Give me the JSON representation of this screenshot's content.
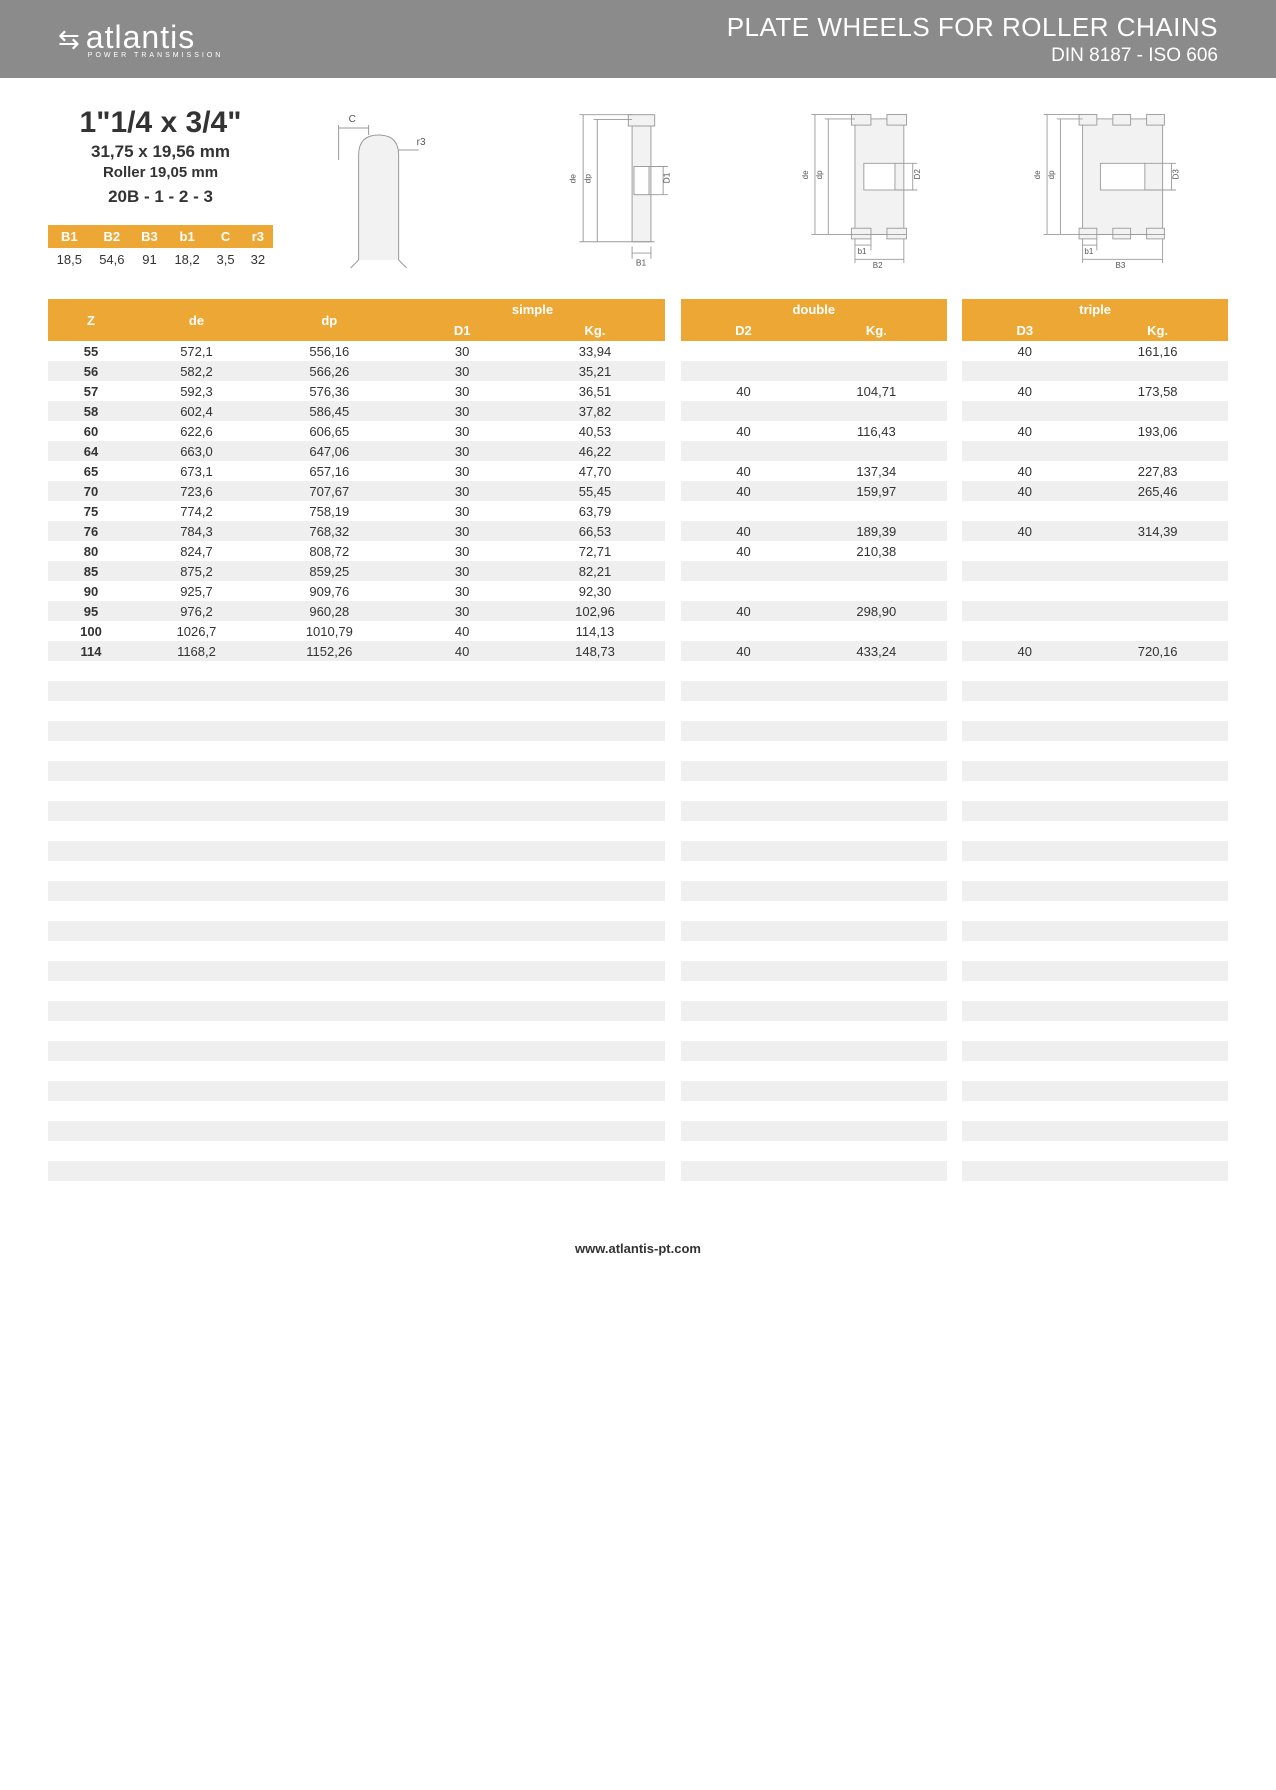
{
  "header": {
    "logo": "atlantis",
    "logo_sub": "POWER TRANSMISSION",
    "title1": "PLATE WHEELS FOR ROLLER CHAINS",
    "title2": "DIN 8187 - ISO 606"
  },
  "spec": {
    "size": "1\"1/4 x 3/4\"",
    "mm": "31,75 x 19,56 mm",
    "roller": "Roller 19,05 mm",
    "code": "20B - 1 - 2 - 3"
  },
  "small_table": {
    "headers": [
      "B1",
      "B2",
      "B3",
      "b1",
      "C",
      "r3"
    ],
    "row": [
      "18,5",
      "54,6",
      "91",
      "18,2",
      "3,5",
      "32"
    ]
  },
  "diagram_labels": {
    "c": "C",
    "r3": "r3",
    "de": "de",
    "dp": "dp",
    "d1": "D1",
    "d2": "D2",
    "d3": "D3",
    "b1": "B1",
    "b1l": "b1",
    "b2": "B2",
    "b3": "B3"
  },
  "main_table": {
    "group_headers": [
      "simple",
      "double",
      "triple"
    ],
    "sub_headers": {
      "z": "Z",
      "de": "de",
      "dp": "dp",
      "d1": "D1",
      "kg1": "Kg.",
      "d2": "D2",
      "kg2": "Kg.",
      "d3": "D3",
      "kg3": "Kg."
    },
    "rows": [
      {
        "z": "55",
        "de": "572,1",
        "dp": "556,16",
        "d1": "30",
        "kg1": "33,94",
        "d2": "",
        "kg2": "",
        "d3": "40",
        "kg3": "161,16"
      },
      {
        "z": "56",
        "de": "582,2",
        "dp": "566,26",
        "d1": "30",
        "kg1": "35,21",
        "d2": "",
        "kg2": "",
        "d3": "",
        "kg3": ""
      },
      {
        "z": "57",
        "de": "592,3",
        "dp": "576,36",
        "d1": "30",
        "kg1": "36,51",
        "d2": "40",
        "kg2": "104,71",
        "d3": "40",
        "kg3": "173,58"
      },
      {
        "z": "58",
        "de": "602,4",
        "dp": "586,45",
        "d1": "30",
        "kg1": "37,82",
        "d2": "",
        "kg2": "",
        "d3": "",
        "kg3": ""
      },
      {
        "z": "60",
        "de": "622,6",
        "dp": "606,65",
        "d1": "30",
        "kg1": "40,53",
        "d2": "40",
        "kg2": "116,43",
        "d3": "40",
        "kg3": "193,06"
      },
      {
        "z": "64",
        "de": "663,0",
        "dp": "647,06",
        "d1": "30",
        "kg1": "46,22",
        "d2": "",
        "kg2": "",
        "d3": "",
        "kg3": ""
      },
      {
        "z": "65",
        "de": "673,1",
        "dp": "657,16",
        "d1": "30",
        "kg1": "47,70",
        "d2": "40",
        "kg2": "137,34",
        "d3": "40",
        "kg3": "227,83"
      },
      {
        "z": "70",
        "de": "723,6",
        "dp": "707,67",
        "d1": "30",
        "kg1": "55,45",
        "d2": "40",
        "kg2": "159,97",
        "d3": "40",
        "kg3": "265,46"
      },
      {
        "z": "75",
        "de": "774,2",
        "dp": "758,19",
        "d1": "30",
        "kg1": "63,79",
        "d2": "",
        "kg2": "",
        "d3": "",
        "kg3": ""
      },
      {
        "z": "76",
        "de": "784,3",
        "dp": "768,32",
        "d1": "30",
        "kg1": "66,53",
        "d2": "40",
        "kg2": "189,39",
        "d3": "40",
        "kg3": "314,39"
      },
      {
        "z": "80",
        "de": "824,7",
        "dp": "808,72",
        "d1": "30",
        "kg1": "72,71",
        "d2": "40",
        "kg2": "210,38",
        "d3": "",
        "kg3": ""
      },
      {
        "z": "85",
        "de": "875,2",
        "dp": "859,25",
        "d1": "30",
        "kg1": "82,21",
        "d2": "",
        "kg2": "",
        "d3": "",
        "kg3": ""
      },
      {
        "z": "90",
        "de": "925,7",
        "dp": "909,76",
        "d1": "30",
        "kg1": "92,30",
        "d2": "",
        "kg2": "",
        "d3": "",
        "kg3": ""
      },
      {
        "z": "95",
        "de": "976,2",
        "dp": "960,28",
        "d1": "30",
        "kg1": "102,96",
        "d2": "40",
        "kg2": "298,90",
        "d3": "",
        "kg3": ""
      },
      {
        "z": "100",
        "de": "1026,7",
        "dp": "1010,79",
        "d1": "40",
        "kg1": "114,13",
        "d2": "",
        "kg2": "",
        "d3": "",
        "kg3": ""
      },
      {
        "z": "114",
        "de": "1168,2",
        "dp": "1152,26",
        "d1": "40",
        "kg1": "148,73",
        "d2": "40",
        "kg2": "433,24",
        "d3": "40",
        "kg3": "720,16"
      }
    ],
    "empty_rows": 27
  },
  "footer": "www.atlantis-pt.com",
  "colors": {
    "header_bg": "#8b8b8b",
    "accent": "#eca735",
    "stripe": "#efefef"
  }
}
